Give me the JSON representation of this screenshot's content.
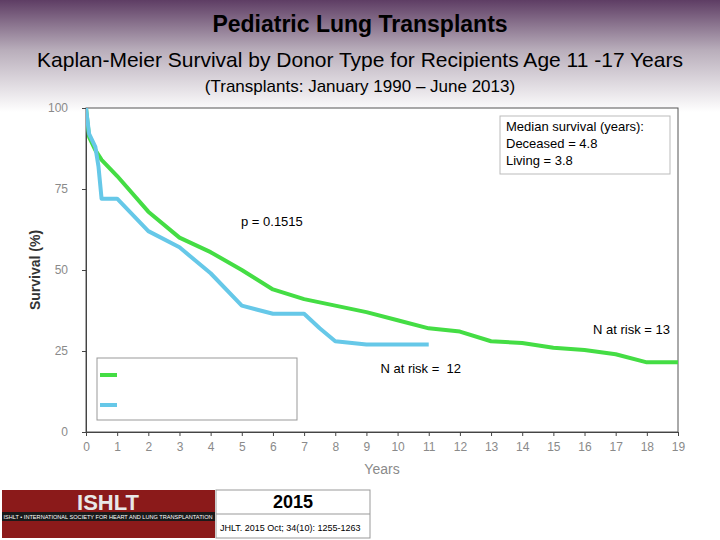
{
  "chart_data": {
    "type": "line",
    "title": "Pediatric Lung Transplants",
    "subtitle": "Kaplan-Meier Survival by Donor Type for Recipients Age 11 -17 Years",
    "subtitle_note": "(Transplants: January 1990 – June 2013)",
    "xlabel": "Years",
    "ylabel": "Survival (%)",
    "xlim": [
      0,
      19
    ],
    "xticks": [
      0,
      1,
      2,
      3,
      4,
      5,
      6,
      7,
      8,
      9,
      10,
      11,
      12,
      13,
      14,
      15,
      16,
      17,
      18,
      19
    ],
    "ylim": [
      0,
      100
    ],
    "yticks": [
      0,
      25,
      50,
      75,
      100
    ],
    "grid": false,
    "legend": "lower left",
    "series": [
      {
        "color": "#44dd44",
        "x": [
          0,
          0.1,
          0.3,
          0.5,
          1,
          2,
          3,
          4,
          5,
          6,
          7,
          8,
          9,
          10,
          11,
          12,
          13,
          14,
          15,
          16,
          17,
          18,
          19
        ],
        "values": [
          100,
          91,
          87,
          84,
          79,
          68,
          60,
          55.5,
          50,
          44,
          41,
          39,
          37,
          34.5,
          32,
          31,
          28,
          27.5,
          26,
          25.3,
          24,
          21.5,
          21.5
        ]
      },
      {
        "color": "#66c8e8",
        "x": [
          0,
          0.1,
          0.3,
          0.4,
          0.5,
          1,
          2,
          3,
          4,
          5,
          6,
          7,
          7.5,
          8,
          9,
          10,
          11
        ],
        "values": [
          100,
          92,
          88,
          82,
          72,
          72,
          62,
          57,
          49,
          39,
          36.5,
          36.5,
          32,
          28,
          27,
          27,
          27
        ]
      }
    ],
    "annotations": [
      "p = 0.1515",
      "N at risk = 13",
      "N at risk =  12"
    ],
    "text_box": [
      "Median survival (years):",
      "Deceased = 4.8",
      "Living = 3.8"
    ]
  },
  "footer": {
    "logo": "ISHLT",
    "society": "ISHLT • INTERNATIONAL SOCIETY FOR HEART AND LUNG TRANSPLANTATION",
    "year": "2015",
    "citation": "JHLT. 2015 Oct; 34(10): 1255-1263"
  }
}
